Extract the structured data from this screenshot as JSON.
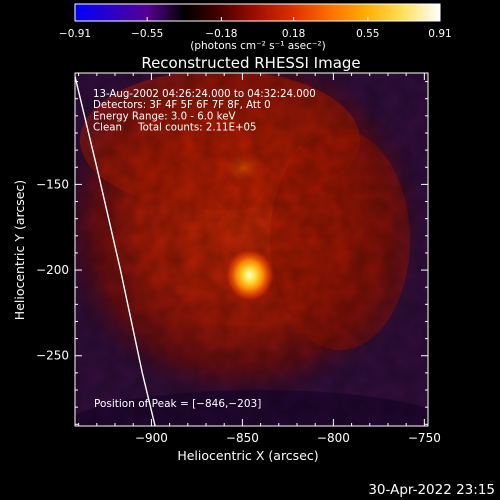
{
  "colorbar": {
    "ticks": [
      "-0.91",
      "-0.55",
      "-0.18",
      "0.18",
      "0.55",
      "0.91"
    ],
    "range": [
      -0.91,
      0.91
    ],
    "unit_label": "(photons cm⁻² s⁻¹ asec⁻²)",
    "colors": [
      "#0000ff",
      "#2b00c8",
      "#55008e",
      "#000000",
      "#4a0000",
      "#a01000",
      "#e03000",
      "#ff7000",
      "#ffb000",
      "#ffe060",
      "#ffffff"
    ]
  },
  "chart_data": {
    "type": "heatmap",
    "title": "Reconstructed RHESSI Image",
    "xlabel": "Heliocentric X (arcsec)",
    "ylabel": "Heliocentric Y (arcsec)",
    "xlim": [
      -942,
      -748
    ],
    "ylim": [
      -291,
      -85
    ],
    "x_ticks": [
      -900,
      -850,
      -800,
      -750
    ],
    "x_tick_labels": [
      "−900",
      "−850",
      "−800",
      "−750"
    ],
    "y_ticks": [
      -150,
      -200,
      -250
    ],
    "y_tick_labels": [
      "−150",
      "−200",
      "−250"
    ],
    "annotations": [
      "13-Aug-2002 04:26:24.000 to 04:32:24.000",
      "Detectors: 3F 4F 5F 6F 7F 8F, Att 0",
      "Energy Range: 3.0 - 6.0 keV",
      "Clean     Total counts: 2.11E+05"
    ],
    "peak_label": "Position of Peak = [−846,−203]",
    "peak": [
      -846,
      -203
    ],
    "limb": [
      [
        -942,
        -87
      ],
      [
        -930,
        -140
      ],
      [
        -917,
        -200
      ],
      [
        -905,
        -260
      ],
      [
        -898,
        -291
      ]
    ]
  },
  "footer": {
    "timestamp": "30-Apr-2022 23:15"
  }
}
